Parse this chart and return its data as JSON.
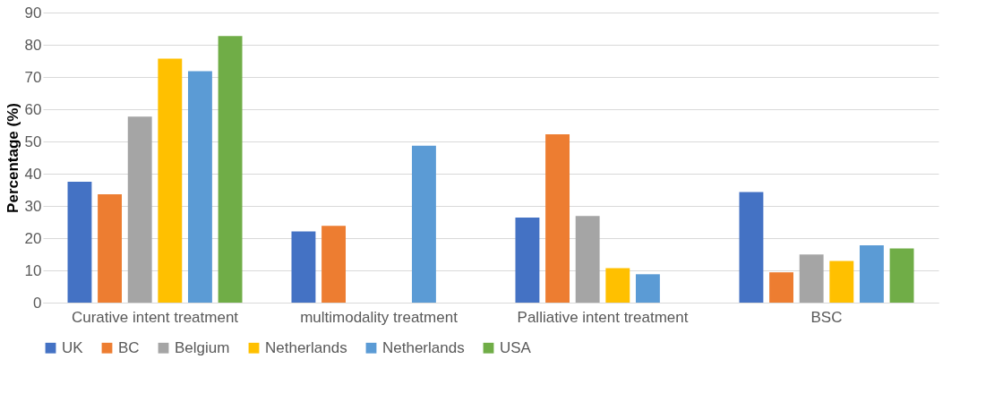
{
  "chart_data": {
    "type": "bar",
    "ylabel": "Percentage (%)",
    "categories": [
      "Curative intent treatment",
      "multimodality treatment",
      "Palliative intent treatment",
      "BSC"
    ],
    "series": [
      {
        "name": "UK",
        "color": "#4472c4",
        "values": [
          37.5,
          22.1,
          26.4,
          34.3
        ]
      },
      {
        "name": "BC",
        "color": "#ed7d31",
        "values": [
          33.6,
          23.8,
          52.2,
          9.4
        ]
      },
      {
        "name": "Belgium",
        "color": "#a5a5a5",
        "values": [
          57.7,
          null,
          26.9,
          14.9
        ]
      },
      {
        "name": "Netherlands",
        "color": "#ffc000",
        "values": [
          75.7,
          null,
          10.7,
          12.9
        ]
      },
      {
        "name": "Netherlands",
        "color": "#5b9bd5",
        "values": [
          71.8,
          48.7,
          8.8,
          17.8
        ]
      },
      {
        "name": "USA",
        "color": "#70ad47",
        "values": [
          82.7,
          null,
          null,
          16.8
        ]
      }
    ],
    "ylim": [
      0,
      90
    ],
    "yticks": [
      0,
      10,
      20,
      30,
      40,
      50,
      60,
      70,
      80,
      90
    ],
    "grid": "y",
    "legend": "bottom"
  }
}
